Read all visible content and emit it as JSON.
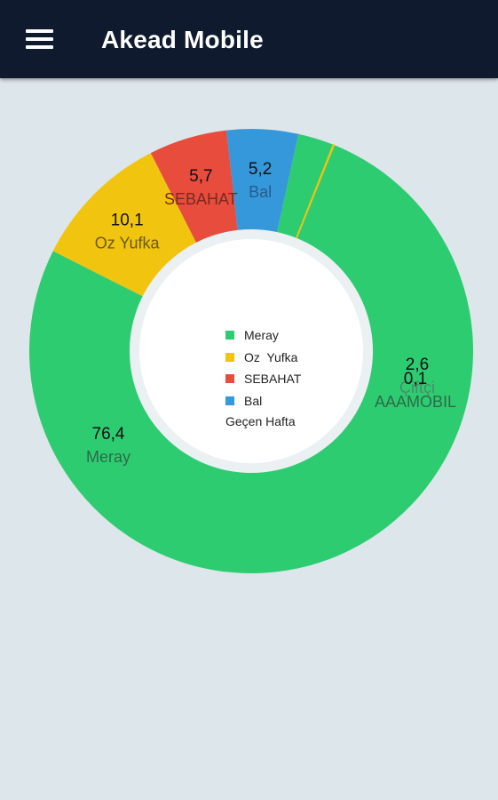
{
  "app": {
    "title": "Akead Mobile",
    "menu_icon": "hamburger-menu-icon"
  },
  "colors": {
    "toolbar": "#0f1a2e",
    "background": "#dde6ea",
    "inner_ring": "#8fe0b0"
  },
  "chart_data": {
    "type": "pie",
    "donut": true,
    "title": "",
    "categories": [
      "Meray",
      "Oz  Yufka",
      "SEBAHAT",
      "Bal",
      "Çiftçi",
      "AAAMOBIL"
    ],
    "values": [
      76.4,
      10.1,
      5.7,
      5.2,
      2.6,
      0.1
    ],
    "value_labels": [
      "76,4",
      "10,1",
      "5,7",
      "5,2",
      "2,6",
      "0,1"
    ],
    "colors": [
      "#2ecc71",
      "#f1c40f",
      "#e74c3c",
      "#3498db",
      "#2ecc71",
      "#f1c40f"
    ],
    "name_label_colors": [
      "#2c6b4a",
      "#6b5a10",
      "#7a2a22",
      "#2a5c8a",
      "#4f8a6a",
      "#2c6b4a"
    ],
    "center_text": "Geçen Hafta",
    "legend": [
      {
        "label": "Meray",
        "color": "#2ecc71"
      },
      {
        "label": "Oz  Yufka",
        "color": "#f1c40f"
      },
      {
        "label": "SEBAHAT",
        "color": "#e74c3c"
      },
      {
        "label": "Bal",
        "color": "#3498db"
      }
    ]
  }
}
